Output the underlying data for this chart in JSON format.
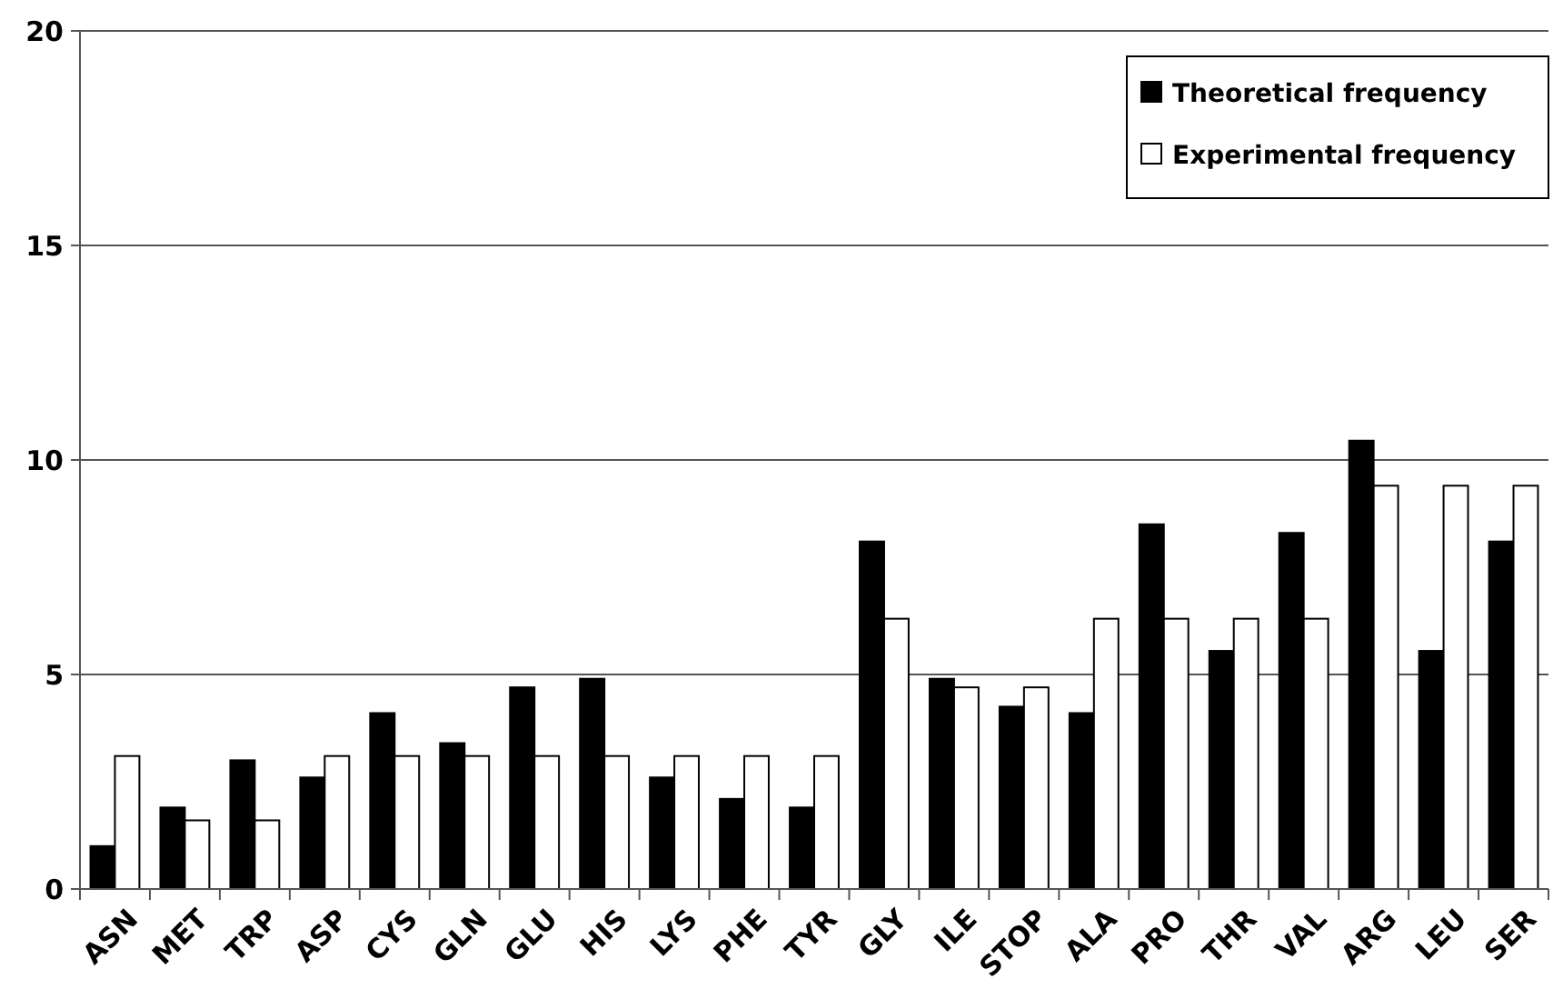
{
  "chart_data": {
    "type": "bar",
    "categories": [
      "ASN",
      "MET",
      "TRP",
      "ASP",
      "CYS",
      "GLN",
      "GLU",
      "HIS",
      "LYS",
      "PHE",
      "TYR",
      "GLY",
      "ILE",
      "STOP",
      "ALA",
      "PRO",
      "THR",
      "VAL",
      "ARG",
      "LEU",
      "SER"
    ],
    "series": [
      {
        "name": "Theoretical frequency",
        "color": "#000000",
        "values": [
          1.0,
          1.9,
          3.0,
          2.6,
          4.1,
          3.4,
          4.7,
          4.9,
          2.6,
          2.1,
          1.9,
          8.1,
          4.9,
          4.25,
          4.1,
          8.5,
          5.55,
          8.3,
          10.45,
          5.55,
          8.1
        ]
      },
      {
        "name": "Experimental frequency",
        "color": "#ffffff",
        "values": [
          3.1,
          1.6,
          1.6,
          3.1,
          3.1,
          3.1,
          3.1,
          3.1,
          3.1,
          3.1,
          3.1,
          6.3,
          4.7,
          4.7,
          6.3,
          6.3,
          6.3,
          6.3,
          9.4,
          9.4,
          9.4
        ]
      }
    ],
    "ylim": [
      0,
      20
    ],
    "yticks": [
      0,
      5,
      10,
      15,
      20
    ],
    "grid": "y",
    "legend": "top right"
  }
}
